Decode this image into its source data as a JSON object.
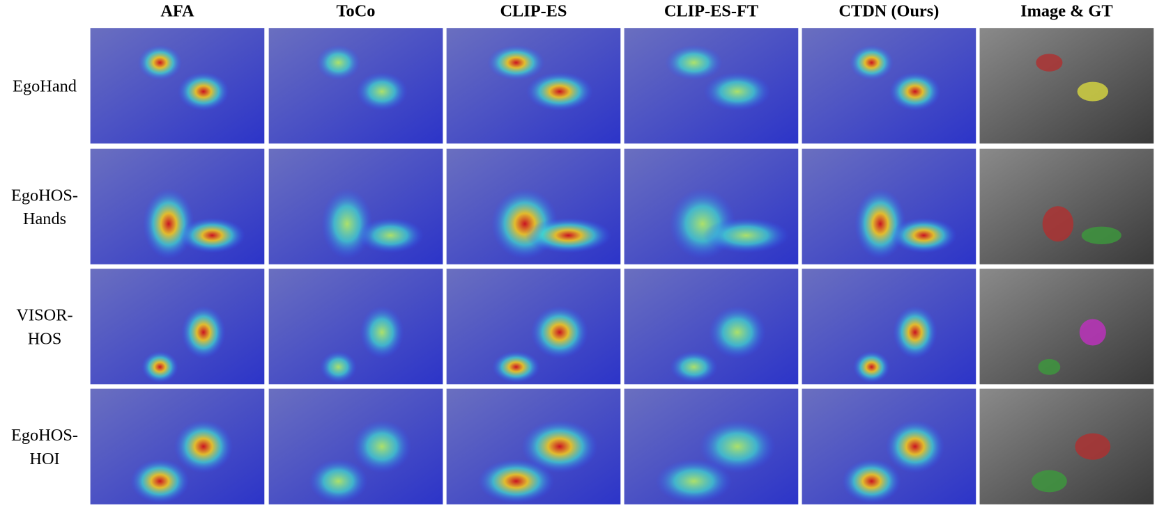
{
  "columns": [
    "AFA",
    "ToCo",
    "CLIP-ES",
    "CLIP-ES-FT",
    "CTDN (Ours)",
    "Image & GT"
  ],
  "rows": [
    [
      "EgoHand"
    ],
    [
      "EgoHOS-",
      "Hands"
    ],
    [
      "VISOR-",
      "HOS"
    ],
    [
      "EgoHOS-",
      "HOI"
    ]
  ]
}
